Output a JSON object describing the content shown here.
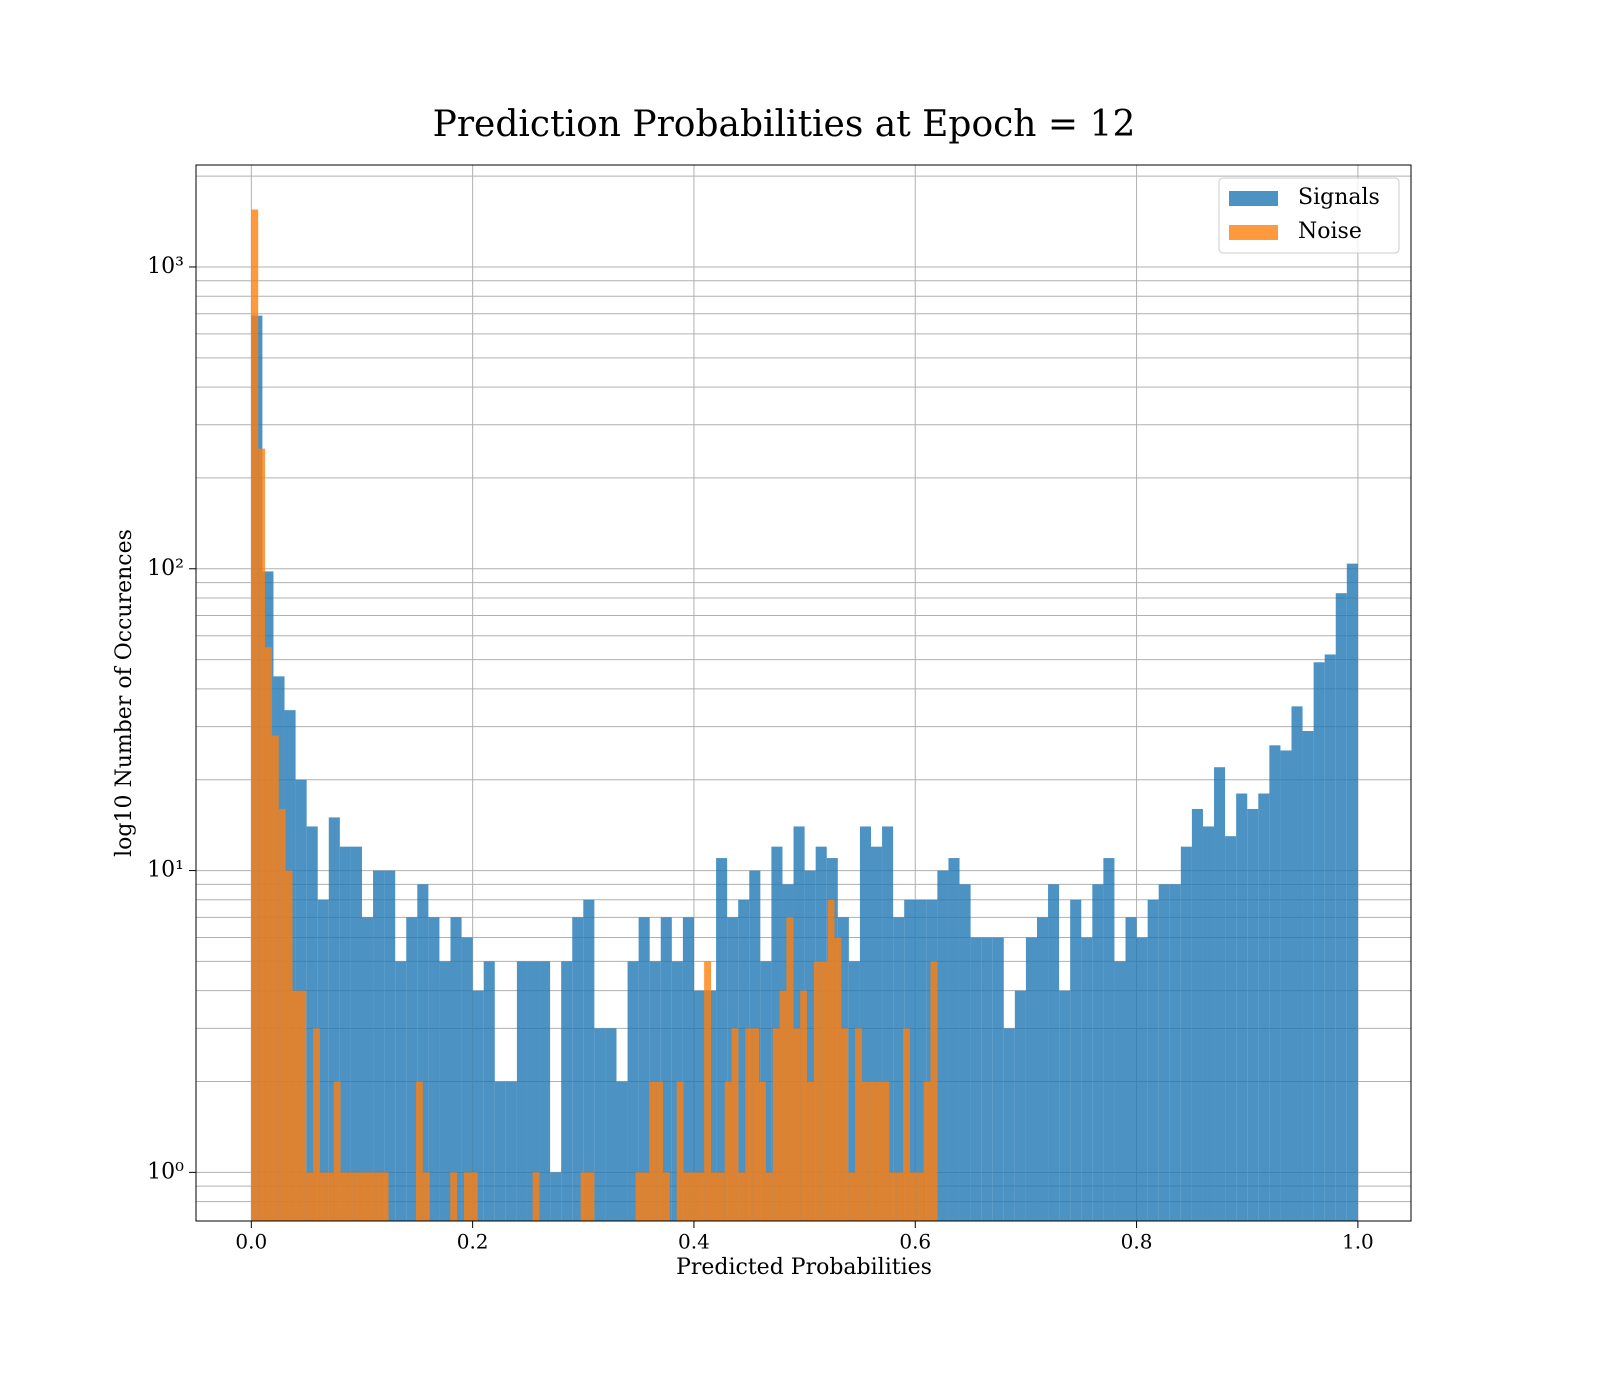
{
  "chart_data": {
    "type": "histogram",
    "title": "Prediction Probabilities at Epoch = 12",
    "xlabel": "Predicted Probabilities",
    "ylabel": "log10 Number of Occurences",
    "log_y": true,
    "grid": true,
    "legend": "upper right",
    "xlim": [
      -0.05,
      1.048
    ],
    "ylim": [
      0.69,
      2177
    ],
    "xticks": [
      {
        "value": 0,
        "label": "0.0"
      },
      0.2,
      0.4,
      0.6,
      0.8,
      {
        "value": 1,
        "label": "1.0"
      }
    ],
    "yticks": [
      {
        "value": 1,
        "label": "10⁰"
      },
      {
        "value": 10,
        "label": "10¹"
      },
      {
        "value": 100,
        "label": "10²"
      },
      {
        "value": 1000,
        "label": "10³"
      }
    ],
    "minor_yticks": [
      0.8,
      0.9,
      2,
      3,
      4,
      5,
      6,
      7,
      8,
      9,
      20,
      30,
      40,
      50,
      60,
      70,
      80,
      90,
      200,
      300,
      400,
      500,
      600,
      700,
      800,
      900,
      2000
    ],
    "series": [
      {
        "name": "Signals",
        "color": "#1f77b4",
        "bins": [
          0,
          0.01,
          0.02,
          0.03,
          0.04,
          0.05,
          0.06,
          0.07,
          0.08,
          0.09,
          0.1,
          0.11,
          0.12,
          0.13,
          0.14,
          0.15,
          0.16,
          0.17,
          0.18,
          0.19,
          0.2,
          0.21,
          0.22,
          0.23,
          0.24,
          0.25,
          0.26,
          0.27,
          0.28,
          0.29,
          0.3,
          0.31,
          0.32,
          0.33,
          0.34,
          0.35,
          0.36,
          0.37,
          0.38,
          0.39,
          0.4,
          0.41,
          0.42,
          0.43,
          0.44,
          0.45,
          0.46,
          0.47,
          0.48,
          0.49,
          0.5,
          0.51,
          0.52,
          0.53,
          0.54,
          0.55,
          0.56,
          0.57,
          0.58,
          0.59,
          0.6,
          0.61,
          0.62,
          0.63,
          0.64,
          0.65,
          0.66,
          0.67,
          0.68,
          0.69,
          0.7,
          0.71,
          0.72,
          0.73,
          0.74,
          0.75,
          0.76,
          0.77,
          0.78,
          0.79,
          0.8,
          0.81,
          0.82,
          0.83,
          0.84,
          0.85,
          0.86,
          0.87,
          0.88,
          0.89,
          0.9,
          0.91,
          0.92,
          0.93,
          0.94,
          0.95,
          0.96,
          0.97,
          0.98,
          0.99,
          1
        ],
        "values": [
          690,
          98,
          44,
          34,
          20,
          14,
          8,
          15,
          12,
          12,
          7,
          10,
          10,
          5,
          7,
          9,
          7,
          5,
          7,
          6,
          4,
          5,
          2,
          2,
          5,
          5,
          5,
          1,
          5,
          7,
          8,
          3,
          3,
          2,
          5,
          7,
          5,
          7,
          5,
          7,
          4,
          4,
          11,
          7,
          8,
          10,
          5,
          12,
          9,
          14,
          10,
          12,
          11,
          7,
          5,
          14,
          12,
          14,
          7,
          8,
          8,
          8,
          10,
          11,
          9,
          6,
          6,
          6,
          3,
          4,
          6,
          7,
          9,
          4,
          8,
          6,
          9,
          11,
          5,
          7,
          6,
          8,
          9,
          9,
          12,
          16,
          14,
          22,
          13,
          18,
          16,
          18,
          26,
          25,
          35,
          29,
          49,
          52,
          83,
          104
        ]
      },
      {
        "name": "Noise",
        "color": "#ff7f0e",
        "bins": [
          0,
          0.0062,
          0.0124,
          0.0186,
          0.0248,
          0.031,
          0.0372,
          0.0434,
          0.0496,
          0.0558,
          0.062,
          0.0682,
          0.0744,
          0.0806,
          0.0868,
          0.093,
          0.0992,
          0.1054,
          0.1116,
          0.1178,
          0.124,
          0.1302,
          0.1364,
          0.1426,
          0.1488,
          0.155,
          0.1612,
          0.1674,
          0.1736,
          0.1798,
          0.186,
          0.1922,
          0.1984,
          0.2046,
          0.2108,
          0.217,
          0.2232,
          0.2294,
          0.2356,
          0.2418,
          0.248,
          0.2542,
          0.2604,
          0.2666,
          0.2728,
          0.279,
          0.2852,
          0.2914,
          0.2976,
          0.3038,
          0.31,
          0.3162,
          0.3224,
          0.3286,
          0.3348,
          0.341,
          0.3472,
          0.3534,
          0.3596,
          0.3658,
          0.372,
          0.3782,
          0.3844,
          0.3906,
          0.3968,
          0.403,
          0.4092,
          0.4154,
          0.4216,
          0.4278,
          0.434,
          0.4402,
          0.4464,
          0.4526,
          0.4588,
          0.465,
          0.4712,
          0.4774,
          0.4836,
          0.4898,
          0.496,
          0.5022,
          0.5084,
          0.5146,
          0.5208,
          0.527,
          0.5332,
          0.5394,
          0.5456,
          0.5518,
          0.558,
          0.5642,
          0.5704,
          0.5766,
          0.5828,
          0.589,
          0.5952,
          0.6014,
          0.6076,
          0.6138,
          0.62
        ],
        "values": [
          1550,
          250,
          55,
          28,
          16,
          10,
          4,
          4,
          1,
          3,
          1,
          1,
          2,
          1,
          1,
          1,
          1,
          1,
          1,
          1,
          0,
          0,
          0,
          0,
          2,
          1,
          0,
          0,
          0,
          1,
          0,
          1,
          1,
          0,
          0,
          0,
          0,
          0,
          0,
          0,
          0,
          1,
          0,
          0,
          0,
          0,
          0,
          0,
          1,
          1,
          0,
          0,
          0,
          0,
          0,
          0,
          1,
          1,
          2,
          2,
          1,
          0,
          2,
          1,
          1,
          1,
          5,
          1,
          1,
          2,
          3,
          1,
          3,
          3,
          2,
          1,
          3,
          4,
          7,
          3,
          4,
          2,
          5,
          5,
          8,
          6,
          3,
          1,
          3,
          2,
          2,
          2,
          2,
          1,
          1,
          3,
          1,
          1,
          2,
          5
        ]
      }
    ]
  }
}
